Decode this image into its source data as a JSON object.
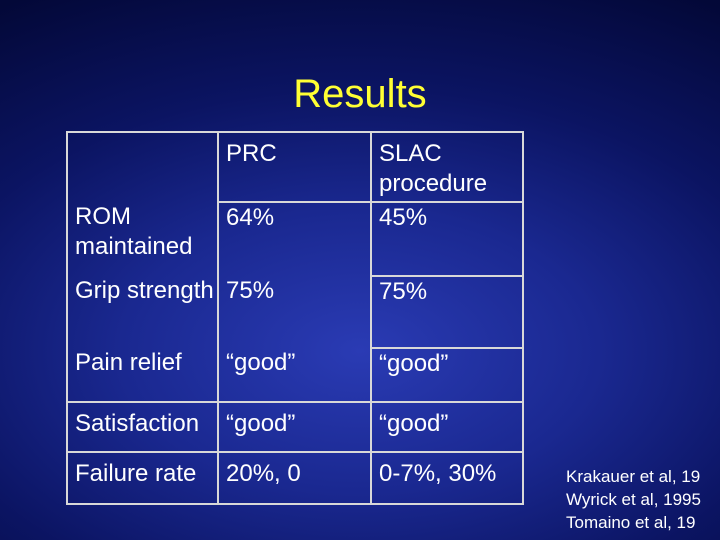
{
  "slide": {
    "title": "Results"
  },
  "table": {
    "headers": [
      "",
      "PRC",
      "SLAC procedure"
    ],
    "rows": [
      {
        "label": "ROM maintained",
        "prc": "64%",
        "slac": "45%"
      },
      {
        "label": "Grip strength",
        "prc": "75%",
        "slac": "75%"
      },
      {
        "label": "Pain relief",
        "prc": "“good”",
        "slac": "“good”"
      },
      {
        "label": "Satisfaction",
        "prc": "“good”",
        "slac": "“good”"
      },
      {
        "label": "Failure rate",
        "prc": "20%, 0",
        "slac": "0-7%, 30%"
      }
    ]
  },
  "references": [
    "Krakauer et al, 19",
    "Wyrick et al, 1995",
    "Tomaino et al, 19"
  ],
  "colors": {
    "title": "#ffff33",
    "text": "#ffffff",
    "border": "#d8d8d8",
    "background": "#1a2890"
  }
}
